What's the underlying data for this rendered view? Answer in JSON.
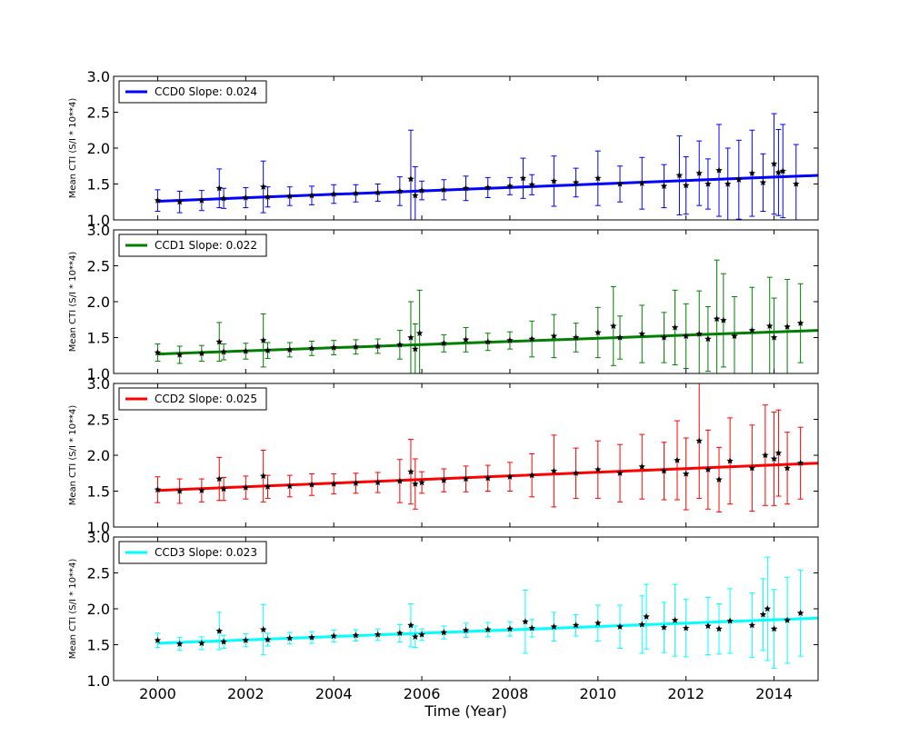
{
  "chart_data": [
    {
      "type": "scatter",
      "ylabel": "Mean CTI (S/I * 10**4)",
      "xlabel": "",
      "xlim": [
        1999,
        2015
      ],
      "ylim": [
        1.0,
        3.0
      ],
      "yticks": [
        "1.0",
        "1.5",
        "2.0",
        "2.5",
        "3.0"
      ],
      "xticks": [],
      "legend": {
        "label": "CCD0 Slope: 0.024",
        "placement": "upper-left"
      },
      "color": "#0000ff",
      "fit": {
        "slope": 0.024,
        "x": [
          2000.0,
          2015.0
        ],
        "y": [
          1.26,
          1.62
        ]
      },
      "series": {
        "name": "CCD0",
        "x": [
          2000.0,
          2000.5,
          2001.0,
          2001.4,
          2001.5,
          2002.0,
          2002.4,
          2002.5,
          2003.0,
          2003.5,
          2004.0,
          2004.5,
          2005.0,
          2005.5,
          2005.75,
          2005.85,
          2006.0,
          2006.5,
          2007.0,
          2007.5,
          2008.0,
          2008.3,
          2008.5,
          2009.0,
          2009.5,
          2010.0,
          2010.5,
          2011.0,
          2011.5,
          2011.85,
          2012.0,
          2012.3,
          2012.5,
          2012.75,
          2012.95,
          2013.2,
          2013.5,
          2013.75,
          2014.0,
          2014.1,
          2014.2,
          2014.5
        ],
        "y": [
          1.27,
          1.25,
          1.27,
          1.44,
          1.3,
          1.31,
          1.46,
          1.32,
          1.33,
          1.34,
          1.36,
          1.37,
          1.38,
          1.4,
          1.57,
          1.34,
          1.41,
          1.42,
          1.44,
          1.45,
          1.47,
          1.58,
          1.49,
          1.54,
          1.52,
          1.58,
          1.5,
          1.51,
          1.47,
          1.62,
          1.48,
          1.65,
          1.5,
          1.69,
          1.5,
          1.56,
          1.65,
          1.52,
          1.78,
          1.66,
          1.68,
          1.5
        ],
        "err": [
          0.15,
          0.15,
          0.14,
          0.27,
          0.14,
          0.14,
          0.36,
          0.14,
          0.13,
          0.13,
          0.13,
          0.12,
          0.12,
          0.2,
          0.68,
          0.4,
          0.13,
          0.14,
          0.17,
          0.14,
          0.12,
          0.28,
          0.14,
          0.35,
          0.2,
          0.38,
          0.25,
          0.36,
          0.3,
          0.55,
          0.4,
          0.45,
          0.35,
          0.64,
          0.5,
          0.55,
          0.6,
          0.4,
          0.7,
          0.6,
          0.65,
          0.55
        ]
      }
    },
    {
      "type": "scatter",
      "ylabel": "Mean CTI (S/I * 10**4)",
      "xlabel": "",
      "xlim": [
        1999,
        2015
      ],
      "ylim": [
        1.0,
        3.0
      ],
      "yticks": [
        "1.0",
        "1.5",
        "2.0",
        "2.5",
        "3.0"
      ],
      "xticks": [],
      "legend": {
        "label": "CCD1 Slope: 0.022",
        "placement": "upper-left"
      },
      "color": "#007f00",
      "fit": {
        "slope": 0.022,
        "x": [
          2000.0,
          2015.0
        ],
        "y": [
          1.27,
          1.6
        ]
      },
      "series": {
        "name": "CCD1",
        "x": [
          2000.0,
          2000.5,
          2001.0,
          2001.4,
          2001.5,
          2002.0,
          2002.4,
          2002.5,
          2003.0,
          2003.5,
          2004.0,
          2004.5,
          2005.0,
          2005.5,
          2005.75,
          2005.85,
          2005.95,
          2006.5,
          2007.0,
          2007.5,
          2008.0,
          2008.5,
          2009.0,
          2009.5,
          2010.0,
          2010.35,
          2010.5,
          2011.0,
          2011.5,
          2011.75,
          2012.0,
          2012.3,
          2012.5,
          2012.7,
          2012.85,
          2013.1,
          2013.5,
          2013.9,
          2014.0,
          2014.3,
          2014.6
        ],
        "y": [
          1.29,
          1.26,
          1.28,
          1.44,
          1.3,
          1.31,
          1.46,
          1.32,
          1.33,
          1.35,
          1.36,
          1.37,
          1.38,
          1.4,
          1.5,
          1.34,
          1.56,
          1.42,
          1.47,
          1.44,
          1.46,
          1.48,
          1.52,
          1.5,
          1.57,
          1.66,
          1.5,
          1.55,
          1.5,
          1.64,
          1.52,
          1.55,
          1.48,
          1.76,
          1.74,
          1.52,
          1.6,
          1.66,
          1.5,
          1.65,
          1.7
        ],
        "err": [
          0.12,
          0.12,
          0.11,
          0.27,
          0.11,
          0.11,
          0.37,
          0.11,
          0.1,
          0.1,
          0.1,
          0.1,
          0.1,
          0.2,
          0.5,
          0.35,
          0.6,
          0.12,
          0.17,
          0.12,
          0.12,
          0.25,
          0.3,
          0.2,
          0.35,
          0.55,
          0.3,
          0.4,
          0.35,
          0.52,
          0.45,
          0.6,
          0.45,
          0.82,
          0.65,
          0.55,
          0.6,
          0.68,
          0.55,
          0.66,
          0.55
        ]
      }
    },
    {
      "type": "scatter",
      "ylabel": "Mean CTI (S/I * 10**4)",
      "xlabel": "",
      "xlim": [
        1999,
        2015
      ],
      "ylim": [
        1.0,
        3.0
      ],
      "yticks": [
        "1.0",
        "1.5",
        "2.0",
        "2.5",
        "3.0"
      ],
      "xticks": [],
      "legend": {
        "label": "CCD2 Slope: 0.025",
        "placement": "upper-left"
      },
      "color": "#ff0000",
      "fit": {
        "slope": 0.025,
        "x": [
          2000.0,
          2015.0
        ],
        "y": [
          1.51,
          1.89
        ]
      },
      "series": {
        "name": "CCD2",
        "x": [
          2000.0,
          2000.5,
          2001.0,
          2001.4,
          2001.5,
          2002.0,
          2002.4,
          2002.5,
          2003.0,
          2003.5,
          2004.0,
          2004.5,
          2005.0,
          2005.5,
          2005.75,
          2005.85,
          2006.0,
          2006.5,
          2007.0,
          2007.5,
          2008.0,
          2008.5,
          2009.0,
          2009.5,
          2010.0,
          2010.5,
          2011.0,
          2011.5,
          2011.8,
          2012.0,
          2012.3,
          2012.5,
          2012.75,
          2013.0,
          2013.5,
          2013.8,
          2014.0,
          2014.1,
          2014.3,
          2014.6
        ],
        "y": [
          1.52,
          1.5,
          1.51,
          1.67,
          1.53,
          1.55,
          1.71,
          1.56,
          1.57,
          1.59,
          1.6,
          1.61,
          1.62,
          1.64,
          1.77,
          1.6,
          1.62,
          1.65,
          1.67,
          1.68,
          1.7,
          1.72,
          1.78,
          1.75,
          1.8,
          1.75,
          1.84,
          1.78,
          1.93,
          1.74,
          2.2,
          1.8,
          1.66,
          1.92,
          1.82,
          2.0,
          1.95,
          2.03,
          1.82,
          1.89
        ],
        "err": [
          0.18,
          0.17,
          0.16,
          0.3,
          0.16,
          0.16,
          0.36,
          0.16,
          0.15,
          0.15,
          0.14,
          0.14,
          0.14,
          0.3,
          0.45,
          0.35,
          0.15,
          0.16,
          0.18,
          0.18,
          0.2,
          0.3,
          0.5,
          0.35,
          0.4,
          0.4,
          0.45,
          0.4,
          0.55,
          0.5,
          0.8,
          0.55,
          0.45,
          0.6,
          0.6,
          0.7,
          0.65,
          0.6,
          0.5,
          0.5
        ]
      }
    },
    {
      "type": "scatter",
      "ylabel": "Mean CTI (S/I * 10**4)",
      "xlabel": "Time (Year)",
      "xlim": [
        1999,
        2015
      ],
      "ylim": [
        1.0,
        3.0
      ],
      "yticks": [
        "1.0",
        "1.5",
        "2.0",
        "2.5",
        "3.0"
      ],
      "xticks": [
        "2000",
        "2002",
        "2004",
        "2006",
        "2008",
        "2010",
        "2012",
        "2014"
      ],
      "legend": {
        "label": "CCD3 Slope: 0.023",
        "placement": "upper-left"
      },
      "color": "#00ffff",
      "fit": {
        "slope": 0.023,
        "x": [
          2000.0,
          2015.0
        ],
        "y": [
          1.52,
          1.87
        ]
      },
      "series": {
        "name": "CCD3",
        "x": [
          2000.0,
          2000.5,
          2001.0,
          2001.4,
          2001.5,
          2002.0,
          2002.4,
          2002.5,
          2003.0,
          2003.5,
          2004.0,
          2004.5,
          2005.0,
          2005.5,
          2005.75,
          2005.85,
          2006.0,
          2006.5,
          2007.0,
          2007.5,
          2008.0,
          2008.35,
          2008.5,
          2009.0,
          2009.5,
          2010.0,
          2010.5,
          2011.0,
          2011.1,
          2011.5,
          2011.75,
          2012.0,
          2012.5,
          2012.75,
          2013.0,
          2013.5,
          2013.75,
          2013.85,
          2014.0,
          2014.3,
          2014.6
        ],
        "y": [
          1.56,
          1.51,
          1.52,
          1.69,
          1.54,
          1.56,
          1.71,
          1.57,
          1.59,
          1.6,
          1.62,
          1.63,
          1.64,
          1.66,
          1.77,
          1.61,
          1.64,
          1.67,
          1.7,
          1.71,
          1.72,
          1.82,
          1.73,
          1.75,
          1.77,
          1.8,
          1.75,
          1.78,
          1.89,
          1.74,
          1.84,
          1.73,
          1.76,
          1.72,
          1.83,
          1.77,
          1.92,
          2.0,
          1.72,
          1.84,
          1.94
        ],
        "err": [
          0.1,
          0.09,
          0.09,
          0.26,
          0.09,
          0.09,
          0.35,
          0.09,
          0.08,
          0.08,
          0.08,
          0.08,
          0.08,
          0.12,
          0.3,
          0.15,
          0.08,
          0.09,
          0.1,
          0.1,
          0.1,
          0.44,
          0.12,
          0.2,
          0.15,
          0.25,
          0.3,
          0.4,
          0.45,
          0.35,
          0.5,
          0.4,
          0.4,
          0.35,
          0.45,
          0.45,
          0.5,
          0.72,
          0.55,
          0.6,
          0.6
        ]
      }
    }
  ]
}
